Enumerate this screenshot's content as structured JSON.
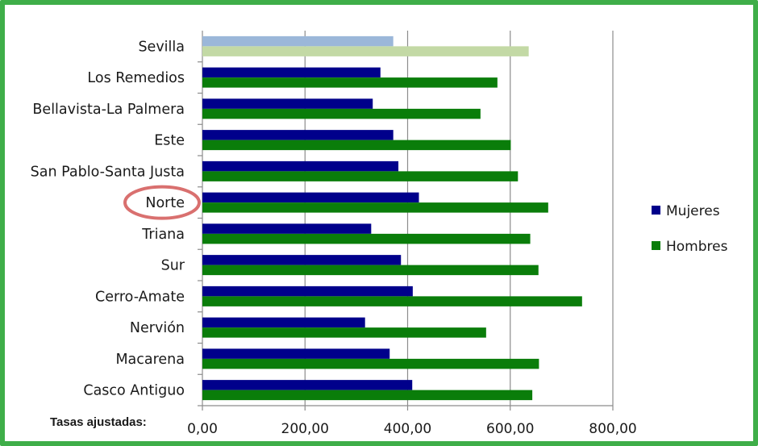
{
  "chart_data": {
    "type": "bar",
    "orientation": "horizontal",
    "x_axis_title": "Tasas ajustadas:",
    "categories": [
      "Sevilla",
      "Los Remedios",
      "Bellavista-La Palmera",
      "Este",
      "San Pablo-Santa Justa",
      "Norte",
      "Triana",
      "Sur",
      "Cerro-Amate",
      "Nervión",
      "Macarena",
      "Casco Antiguo"
    ],
    "series": [
      {
        "name": "Mujeres",
        "color": "#00008b",
        "values": [
          372,
          347,
          332,
          372,
          382,
          422,
          329,
          387,
          410,
          317,
          365,
          409
        ]
      },
      {
        "name": "Hombres",
        "color": "#0a7d0a",
        "values": [
          636,
          575,
          542,
          601,
          615,
          674,
          639,
          655,
          740,
          553,
          656,
          643
        ]
      }
    ],
    "sevilla_colors": {
      "Mujeres": "#9bb7d9",
      "Hombres": "#c3d9a5"
    },
    "highlighted_category": "Norte",
    "highlight_color": "#d9706f",
    "xlim": [
      0,
      800
    ],
    "xticks": [
      "0,00",
      "200,00",
      "400,00",
      "600,00",
      "800,00"
    ],
    "grid": true,
    "legend_position": "right",
    "frame_color": "#3fae49"
  }
}
